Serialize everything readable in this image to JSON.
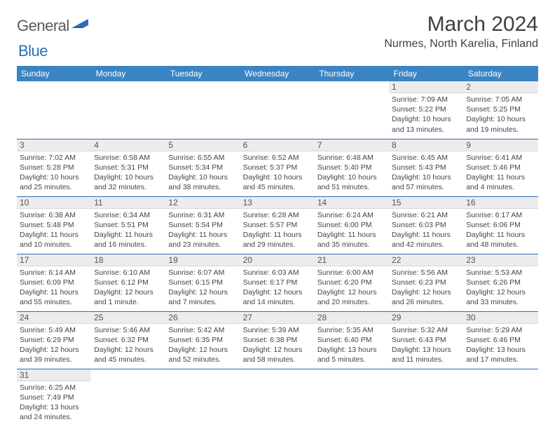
{
  "logo": {
    "part1": "General",
    "part2": "Blue"
  },
  "title": "March 2024",
  "location": "Nurmes, North Karelia, Finland",
  "colors": {
    "header_bg": "#3b84c4",
    "header_text": "#ffffff",
    "daynum_bg": "#ececec",
    "border": "#2a70b8",
    "logo_gray": "#5a5a5a",
    "logo_blue": "#2a70b8"
  },
  "day_headers": [
    "Sunday",
    "Monday",
    "Tuesday",
    "Wednesday",
    "Thursday",
    "Friday",
    "Saturday"
  ],
  "weeks": [
    [
      null,
      null,
      null,
      null,
      null,
      {
        "n": "1",
        "sr": "7:09 AM",
        "ss": "5:22 PM",
        "dl": "10 hours and 13 minutes."
      },
      {
        "n": "2",
        "sr": "7:05 AM",
        "ss": "5:25 PM",
        "dl": "10 hours and 19 minutes."
      }
    ],
    [
      {
        "n": "3",
        "sr": "7:02 AM",
        "ss": "5:28 PM",
        "dl": "10 hours and 25 minutes."
      },
      {
        "n": "4",
        "sr": "6:58 AM",
        "ss": "5:31 PM",
        "dl": "10 hours and 32 minutes."
      },
      {
        "n": "5",
        "sr": "6:55 AM",
        "ss": "5:34 PM",
        "dl": "10 hours and 38 minutes."
      },
      {
        "n": "6",
        "sr": "6:52 AM",
        "ss": "5:37 PM",
        "dl": "10 hours and 45 minutes."
      },
      {
        "n": "7",
        "sr": "6:48 AM",
        "ss": "5:40 PM",
        "dl": "10 hours and 51 minutes."
      },
      {
        "n": "8",
        "sr": "6:45 AM",
        "ss": "5:43 PM",
        "dl": "10 hours and 57 minutes."
      },
      {
        "n": "9",
        "sr": "6:41 AM",
        "ss": "5:46 PM",
        "dl": "11 hours and 4 minutes."
      }
    ],
    [
      {
        "n": "10",
        "sr": "6:38 AM",
        "ss": "5:48 PM",
        "dl": "11 hours and 10 minutes."
      },
      {
        "n": "11",
        "sr": "6:34 AM",
        "ss": "5:51 PM",
        "dl": "11 hours and 16 minutes."
      },
      {
        "n": "12",
        "sr": "6:31 AM",
        "ss": "5:54 PM",
        "dl": "11 hours and 23 minutes."
      },
      {
        "n": "13",
        "sr": "6:28 AM",
        "ss": "5:57 PM",
        "dl": "11 hours and 29 minutes."
      },
      {
        "n": "14",
        "sr": "6:24 AM",
        "ss": "6:00 PM",
        "dl": "11 hours and 35 minutes."
      },
      {
        "n": "15",
        "sr": "6:21 AM",
        "ss": "6:03 PM",
        "dl": "11 hours and 42 minutes."
      },
      {
        "n": "16",
        "sr": "6:17 AM",
        "ss": "6:06 PM",
        "dl": "11 hours and 48 minutes."
      }
    ],
    [
      {
        "n": "17",
        "sr": "6:14 AM",
        "ss": "6:09 PM",
        "dl": "11 hours and 55 minutes."
      },
      {
        "n": "18",
        "sr": "6:10 AM",
        "ss": "6:12 PM",
        "dl": "12 hours and 1 minute."
      },
      {
        "n": "19",
        "sr": "6:07 AM",
        "ss": "6:15 PM",
        "dl": "12 hours and 7 minutes."
      },
      {
        "n": "20",
        "sr": "6:03 AM",
        "ss": "6:17 PM",
        "dl": "12 hours and 14 minutes."
      },
      {
        "n": "21",
        "sr": "6:00 AM",
        "ss": "6:20 PM",
        "dl": "12 hours and 20 minutes."
      },
      {
        "n": "22",
        "sr": "5:56 AM",
        "ss": "6:23 PM",
        "dl": "12 hours and 26 minutes."
      },
      {
        "n": "23",
        "sr": "5:53 AM",
        "ss": "6:26 PM",
        "dl": "12 hours and 33 minutes."
      }
    ],
    [
      {
        "n": "24",
        "sr": "5:49 AM",
        "ss": "6:29 PM",
        "dl": "12 hours and 39 minutes."
      },
      {
        "n": "25",
        "sr": "5:46 AM",
        "ss": "6:32 PM",
        "dl": "12 hours and 45 minutes."
      },
      {
        "n": "26",
        "sr": "5:42 AM",
        "ss": "6:35 PM",
        "dl": "12 hours and 52 minutes."
      },
      {
        "n": "27",
        "sr": "5:39 AM",
        "ss": "6:38 PM",
        "dl": "12 hours and 58 minutes."
      },
      {
        "n": "28",
        "sr": "5:35 AM",
        "ss": "6:40 PM",
        "dl": "13 hours and 5 minutes."
      },
      {
        "n": "29",
        "sr": "5:32 AM",
        "ss": "6:43 PM",
        "dl": "13 hours and 11 minutes."
      },
      {
        "n": "30",
        "sr": "5:29 AM",
        "ss": "6:46 PM",
        "dl": "13 hours and 17 minutes."
      }
    ],
    [
      {
        "n": "31",
        "sr": "6:25 AM",
        "ss": "7:49 PM",
        "dl": "13 hours and 24 minutes."
      },
      null,
      null,
      null,
      null,
      null,
      null
    ]
  ],
  "labels": {
    "sunrise": "Sunrise:",
    "sunset": "Sunset:",
    "daylight": "Daylight:"
  }
}
